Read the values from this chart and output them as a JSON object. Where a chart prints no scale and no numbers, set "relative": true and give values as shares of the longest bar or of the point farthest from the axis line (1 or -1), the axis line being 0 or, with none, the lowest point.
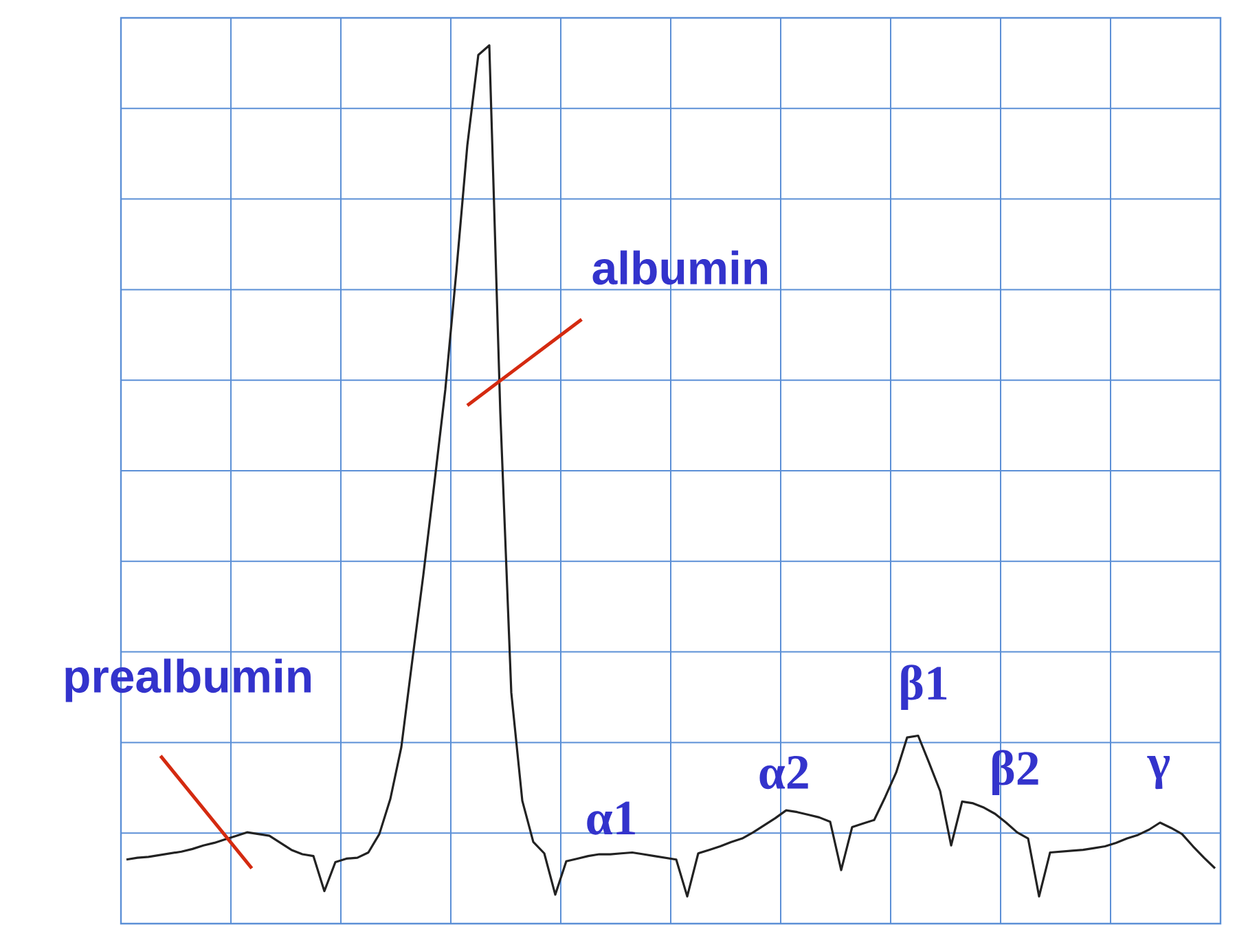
{
  "chart_data": {
    "type": "line",
    "relative": true,
    "color": "#222222",
    "marker": "none",
    "line_style": "solid",
    "grid": true,
    "categories": [
      null,
      null,
      null,
      null,
      null,
      null,
      null,
      null,
      null,
      null,
      null,
      null,
      null,
      null,
      null,
      null,
      null,
      null,
      null,
      null,
      null,
      null,
      null,
      null,
      null,
      null,
      null,
      null,
      null,
      null,
      null,
      null,
      null,
      null,
      null,
      null,
      null,
      null,
      null,
      null,
      null,
      null,
      null,
      null,
      null,
      null,
      null,
      null,
      null,
      null,
      null,
      null,
      null,
      null,
      null,
      null,
      null,
      null,
      null,
      null,
      null,
      null,
      null,
      null,
      null,
      null,
      null,
      null,
      null,
      null,
      null,
      null,
      null,
      null,
      null,
      null,
      null,
      null,
      null,
      null,
      null,
      null,
      null,
      null,
      null,
      null,
      null,
      null,
      null,
      null,
      null,
      null,
      null,
      null,
      null,
      null,
      null,
      null,
      null,
      null
    ],
    "values": [
      0.073,
      0.075,
      0.076,
      0.078,
      0.08,
      0.082,
      0.085,
      0.089,
      0.092,
      0.096,
      0.1,
      0.104,
      0.102,
      0.1,
      0.092,
      0.084,
      0.079,
      0.077,
      0.037,
      0.07,
      0.074,
      0.075,
      0.081,
      0.102,
      0.142,
      0.201,
      0.3,
      0.397,
      0.501,
      0.608,
      0.742,
      0.886,
      0.989,
      1,
      0.582,
      0.263,
      0.14,
      0.093,
      0.08,
      0.033,
      0.071,
      0.074,
      0.077,
      0.079,
      0.079,
      0.08,
      0.081,
      0.079,
      0.077,
      0.075,
      0.073,
      0.031,
      0.08,
      0.084,
      0.088,
      0.093,
      0.097,
      0.104,
      0.112,
      0.12,
      0.129,
      0.127,
      0.124,
      0.121,
      0.116,
      0.061,
      0.11,
      0.114,
      0.118,
      0.144,
      0.172,
      0.212,
      0.214,
      0.183,
      0.151,
      0.089,
      0.139,
      0.137,
      0.132,
      0.125,
      0.115,
      0.104,
      0.097,
      0.031,
      0.081,
      0.082,
      0.083,
      0.084,
      0.086,
      0.088,
      0.092,
      0.097,
      0.101,
      0.107,
      0.115,
      0.109,
      0.102,
      0.088,
      0.075,
      0.063
    ],
    "annotations": [
      "prealbumin",
      "albumin",
      "α1",
      "α2",
      "β1",
      "β2",
      "γ"
    ]
  }
}
